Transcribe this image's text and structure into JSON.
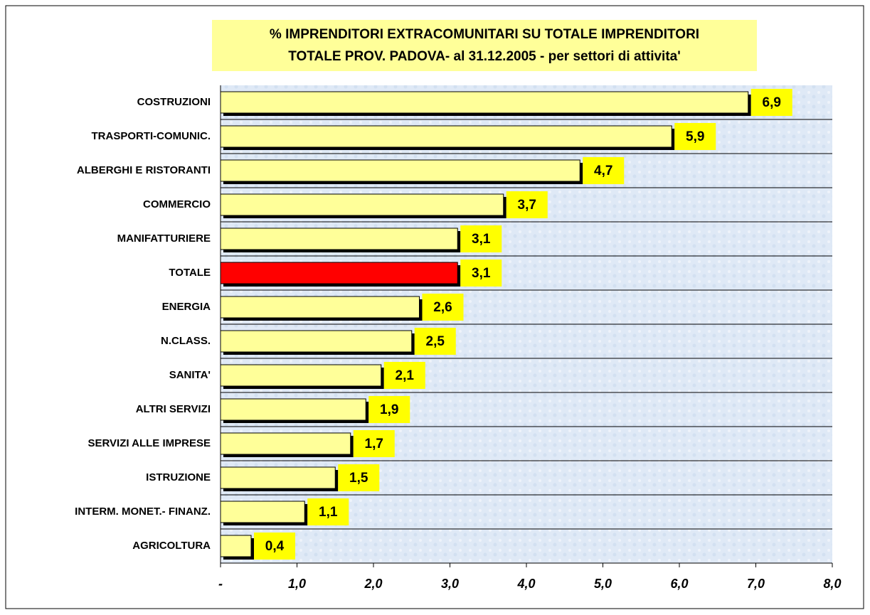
{
  "chart_data": {
    "type": "hbar",
    "title": [
      "% IMPRENDITORI EXTRACOMUNITARI SU TOTALE IMPRENDITORI",
      "TOTALE PROV. PADOVA- al 31.12.2005 - per settori di attivita'"
    ],
    "categories": [
      "COSTRUZIONI",
      "TRASPORTI-COMUNIC.",
      "ALBERGHI E RISTORANTI",
      "COMMERCIO",
      "MANIFATTURIERE",
      "TOTALE",
      "ENERGIA",
      "N.CLASS.",
      "SANITA'",
      "ALTRI SERVIZI",
      "SERVIZI ALLE IMPRESE",
      "ISTRUZIONE",
      "INTERM. MONET.- FINANZ.",
      "AGRICOLTURA"
    ],
    "values": [
      6.9,
      5.9,
      4.7,
      3.7,
      3.1,
      3.1,
      2.6,
      2.5,
      2.1,
      1.9,
      1.7,
      1.5,
      1.1,
      0.4
    ],
    "value_labels": [
      "6,9",
      "5,9",
      "4,7",
      "3,7",
      "3,1",
      "3,1",
      "2,6",
      "2,5",
      "2,1",
      "1,9",
      "1,7",
      "1,5",
      "1,1",
      "0,4"
    ],
    "colors": [
      "#ffff99",
      "#ffff99",
      "#ffff99",
      "#ffff99",
      "#ffff99",
      "#ff0000",
      "#ffff99",
      "#ffff99",
      "#ffff99",
      "#ffff99",
      "#ffff99",
      "#ffff99",
      "#ffff99",
      "#ffff99"
    ],
    "xlim": [
      0,
      8
    ],
    "xticks": [
      {
        "value": 0,
        "label": "-"
      },
      {
        "value": 1,
        "label": "1,0"
      },
      {
        "value": 2,
        "label": "2,0"
      },
      {
        "value": 3,
        "label": "3,0"
      },
      {
        "value": 4,
        "label": "4,0"
      },
      {
        "value": 5,
        "label": "5,0"
      },
      {
        "value": 6,
        "label": "6,0"
      },
      {
        "value": 7,
        "label": "7,0"
      },
      {
        "value": 8,
        "label": "8,0"
      }
    ]
  }
}
